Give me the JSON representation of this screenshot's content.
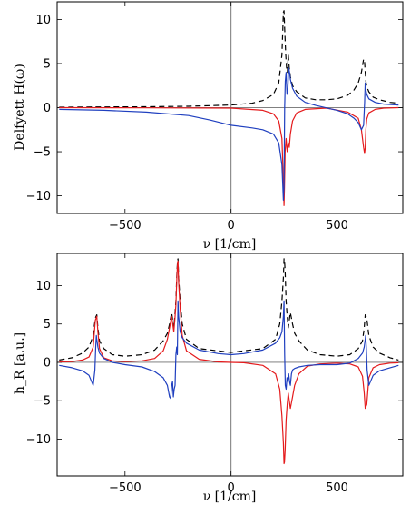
{
  "chart_data": [
    {
      "type": "line",
      "xlabel": "ν [1/cm]",
      "ylabel": "Delfyett H(ω)",
      "xlim": [
        -820,
        810
      ],
      "ylim": [
        -12.0,
        12.0
      ],
      "xticks": [
        -500,
        0,
        500
      ],
      "yticks": [
        -10,
        -5,
        0,
        5,
        10
      ],
      "series": [
        {
          "style": "dashed",
          "color": "#000000",
          "x": [
            -810,
            -600,
            -400,
            -200,
            0,
            100,
            150,
            200,
            225,
            240,
            247,
            250,
            253,
            258,
            262,
            266,
            270,
            275,
            280,
            290,
            310,
            350,
            400,
            450,
            500,
            550,
            580,
            600,
            615,
            625,
            630,
            633,
            636,
            640,
            650,
            670,
            700,
            750,
            790
          ],
          "y": [
            0.05,
            0.08,
            0.1,
            0.15,
            0.3,
            0.5,
            0.8,
            1.5,
            2.8,
            6.0,
            10.8,
            11.0,
            9.0,
            6.0,
            4.5,
            4.0,
            6.0,
            4.5,
            3.5,
            2.5,
            1.8,
            1.1,
            0.9,
            0.9,
            1.0,
            1.4,
            2.0,
            2.8,
            4.0,
            5.5,
            5.2,
            4.0,
            3.0,
            2.4,
            1.8,
            1.2,
            0.9,
            0.6,
            0.5
          ]
        },
        {
          "style": "solid",
          "color": "#e41a1c",
          "x": [
            -810,
            -400,
            0,
            150,
            200,
            225,
            240,
            248,
            250,
            252,
            255,
            260,
            265,
            270,
            275,
            280,
            290,
            310,
            350,
            450,
            550,
            600,
            615,
            625,
            630,
            633,
            636,
            640,
            650,
            680,
            720,
            790
          ],
          "y": [
            0.0,
            -0.02,
            -0.05,
            -0.3,
            -0.7,
            -1.5,
            -3.5,
            -9.0,
            -11.1,
            -9.0,
            -5.0,
            -3.5,
            -5.0,
            -4.0,
            -4.5,
            -3.0,
            -1.5,
            -0.6,
            -0.2,
            -0.05,
            -0.5,
            -1.2,
            -2.5,
            -4.5,
            -5.2,
            -4.5,
            -2.5,
            -1.3,
            -0.6,
            -0.2,
            -0.05,
            0.0
          ]
        },
        {
          "style": "solid",
          "color": "#1f3fbf",
          "x": [
            -810,
            -600,
            -400,
            -200,
            -100,
            0,
            100,
            150,
            200,
            225,
            240,
            247,
            250,
            253,
            256,
            260,
            264,
            268,
            272,
            276,
            280,
            290,
            310,
            350,
            400,
            500,
            550,
            580,
            600,
            615,
            625,
            630,
            633,
            636,
            640,
            650,
            680,
            720,
            790
          ],
          "y": [
            -0.2,
            -0.3,
            -0.5,
            -0.9,
            -1.4,
            -2.0,
            -2.3,
            -2.5,
            -3.0,
            -4.0,
            -6.5,
            -10.5,
            -9.0,
            0.0,
            3.0,
            4.0,
            1.5,
            2.0,
            4.5,
            4.0,
            3.2,
            2.2,
            1.3,
            0.6,
            0.25,
            -0.3,
            -0.7,
            -1.2,
            -1.7,
            -2.5,
            -2.0,
            0.5,
            2.8,
            2.0,
            1.5,
            1.0,
            0.6,
            0.4,
            0.3
          ]
        }
      ]
    },
    {
      "type": "line",
      "xlabel": "ν [1/cm]",
      "ylabel": "h_R [a.u.]",
      "xlim": [
        -820,
        810
      ],
      "ylim": [
        -14.8,
        14.2
      ],
      "xticks": [
        -500,
        0,
        500
      ],
      "yticks": [
        -10,
        -5,
        0,
        5,
        10
      ],
      "series": [
        {
          "style": "dashed",
          "color": "#000000",
          "x": [
            -810,
            -750,
            -700,
            -670,
            -650,
            -640,
            -633,
            -628,
            -620,
            -600,
            -560,
            -500,
            -420,
            -360,
            -320,
            -300,
            -290,
            -280,
            -275,
            -270,
            -265,
            -260,
            -255,
            -252,
            -250,
            -247,
            -240,
            -230,
            -210,
            -150,
            0,
            150,
            210,
            230,
            240,
            247,
            250,
            252,
            255,
            260,
            265,
            270,
            275,
            280,
            290,
            300,
            320,
            360,
            420,
            500,
            560,
            600,
            620,
            628,
            633,
            640,
            650,
            670,
            700,
            750,
            790
          ],
          "y": [
            0.3,
            0.6,
            1.2,
            2.0,
            3.5,
            5.8,
            6.2,
            4.5,
            2.8,
            1.8,
            1.0,
            0.8,
            1.0,
            1.6,
            2.8,
            3.8,
            5.0,
            6.5,
            5.5,
            4.5,
            6.0,
            8.0,
            12.0,
            13.3,
            13.5,
            11.0,
            8.0,
            5.0,
            3.0,
            1.8,
            1.3,
            1.8,
            3.0,
            5.0,
            8.0,
            11.0,
            13.5,
            13.3,
            12.0,
            8.0,
            6.0,
            4.5,
            5.5,
            6.5,
            5.0,
            3.8,
            2.8,
            1.6,
            1.0,
            0.8,
            1.0,
            1.8,
            2.8,
            4.5,
            6.2,
            5.8,
            3.5,
            2.0,
            1.2,
            0.6,
            0.3
          ]
        },
        {
          "style": "solid",
          "color": "#e41a1c",
          "x": [
            -810,
            -750,
            -700,
            -670,
            -650,
            -640,
            -633,
            -628,
            -620,
            -600,
            -560,
            -500,
            -420,
            -360,
            -320,
            -300,
            -290,
            -280,
            -275,
            -270,
            -265,
            -260,
            -255,
            -252,
            -250,
            -247,
            -240,
            -230,
            -210,
            -150,
            -60,
            0,
            60,
            150,
            210,
            230,
            240,
            247,
            250,
            252,
            255,
            260,
            265,
            270,
            275,
            280,
            290,
            300,
            320,
            360,
            420,
            500,
            560,
            600,
            620,
            628,
            633,
            640,
            650,
            670,
            700,
            750,
            790
          ],
          "y": [
            0.05,
            0.1,
            0.3,
            0.7,
            2.0,
            5.5,
            6.0,
            4.0,
            1.8,
            0.6,
            0.2,
            0.1,
            0.2,
            0.5,
            1.5,
            3.0,
            4.5,
            6.0,
            5.0,
            4.0,
            5.5,
            7.5,
            11.5,
            13.0,
            13.2,
            10.5,
            7.0,
            3.5,
            1.5,
            0.4,
            0.05,
            0.0,
            -0.05,
            -0.4,
            -1.5,
            -3.5,
            -7.0,
            -10.5,
            -13.2,
            -13.0,
            -11.5,
            -7.5,
            -5.5,
            -4.0,
            -5.0,
            -6.0,
            -4.5,
            -3.0,
            -1.5,
            -0.5,
            -0.2,
            -0.1,
            -0.2,
            -0.6,
            -1.8,
            -4.0,
            -6.0,
            -5.5,
            -2.0,
            -0.7,
            -0.3,
            -0.1,
            -0.05
          ]
        },
        {
          "style": "solid",
          "color": "#1f3fbf",
          "x": [
            -810,
            -750,
            -700,
            -670,
            -650,
            -642,
            -638,
            -635,
            -633,
            -628,
            -620,
            -600,
            -560,
            -500,
            -420,
            -360,
            -320,
            -300,
            -290,
            -285,
            -280,
            -276,
            -272,
            -268,
            -264,
            -260,
            -256,
            -253,
            -250,
            -247,
            -240,
            -230,
            -210,
            -150,
            -60,
            0,
            60,
            150,
            210,
            230,
            240,
            247,
            250,
            253,
            256,
            260,
            264,
            268,
            272,
            276,
            280,
            285,
            290,
            300,
            320,
            360,
            420,
            500,
            560,
            600,
            620,
            628,
            633,
            635,
            638,
            642,
            650,
            670,
            700,
            750,
            790
          ],
          "y": [
            -0.4,
            -0.7,
            -1.1,
            -1.7,
            -3.0,
            -1.0,
            2.0,
            3.5,
            3.0,
            2.0,
            1.2,
            0.5,
            0.0,
            -0.3,
            -0.6,
            -1.2,
            -2.0,
            -3.0,
            -4.5,
            -4.7,
            -3.0,
            -2.5,
            -4.5,
            -3.5,
            -3.0,
            1.0,
            2.0,
            1.0,
            8.0,
            6.0,
            4.0,
            3.2,
            2.5,
            1.6,
            1.15,
            1.0,
            1.15,
            1.6,
            2.5,
            3.2,
            4.0,
            6.0,
            8.0,
            1.0,
            -3.0,
            -3.5,
            -2.0,
            -2.5,
            -1.5,
            -2.5,
            -3.0,
            -1.5,
            -1.0,
            -0.8,
            -0.6,
            -0.4,
            -0.3,
            -0.3,
            -0.1,
            0.5,
            1.2,
            2.0,
            3.0,
            3.5,
            2.0,
            -1.0,
            -3.0,
            -1.7,
            -1.1,
            -0.7,
            -0.4
          ]
        }
      ]
    }
  ]
}
